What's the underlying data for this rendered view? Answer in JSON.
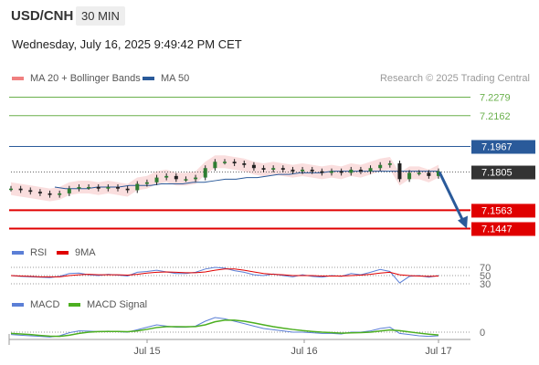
{
  "header": {
    "symbol": "USD/CNH",
    "timeframe": "30 MIN",
    "datetime": "Wednesday, July 16, 2025 9:49:42 PM CET"
  },
  "legend_main": [
    {
      "label": "MA 20 + Bollinger Bands",
      "color": "#f08080"
    },
    {
      "label": "MA 50",
      "color": "#2a5a9a"
    }
  ],
  "credit": "Research © 2025 Trading Central",
  "legend_rsi": [
    {
      "label": "RSI",
      "color": "#5b7fd6"
    },
    {
      "label": "9MA",
      "color": "#e00000"
    }
  ],
  "legend_macd": [
    {
      "label": "MACD",
      "color": "#5b7fd6"
    },
    {
      "label": "MACD Signal",
      "color": "#4caf20"
    }
  ],
  "colors": {
    "resistance": "#6ab04c",
    "pivot": "#2a5a9a",
    "support": "#e00000",
    "current": "#333333",
    "arrow": "#2a5a9a",
    "candle": "#222222",
    "band_fill": "#f8d0d0"
  },
  "chart_data": {
    "type": "candlestick",
    "x_ticks": [
      "Jul 15",
      "Jul 16",
      "Jul 17"
    ],
    "y_unit": "CNH",
    "levels": [
      {
        "value": 7.2279,
        "label": "7.2279",
        "kind": "resistance"
      },
      {
        "value": 7.2162,
        "label": "7.2162",
        "kind": "resistance"
      },
      {
        "value": 7.1967,
        "label": "7.1967",
        "kind": "pivot"
      },
      {
        "value": 7.1805,
        "label": "7.1805",
        "kind": "current"
      },
      {
        "value": 7.1563,
        "label": "7.1563",
        "kind": "support"
      },
      {
        "value": 7.1447,
        "label": "7.1447",
        "kind": "support"
      }
    ],
    "price_series": [
      7.17,
      7.169,
      7.168,
      7.167,
      7.166,
      7.167,
      7.17,
      7.171,
      7.171,
      7.17,
      7.171,
      7.17,
      7.169,
      7.173,
      7.174,
      7.177,
      7.178,
      7.176,
      7.176,
      7.177,
      7.183,
      7.187,
      7.187,
      7.186,
      7.185,
      7.183,
      7.182,
      7.183,
      7.182,
      7.181,
      7.182,
      7.181,
      7.18,
      7.181,
      7.18,
      7.182,
      7.181,
      7.183,
      7.185,
      7.186,
      7.176,
      7.18,
      7.18,
      7.178,
      7.181
    ],
    "ma50_series": [
      7.171,
      7.17,
      7.17,
      7.17,
      7.171,
      7.171,
      7.171,
      7.172,
      7.172,
      7.172,
      7.173,
      7.173,
      7.173,
      7.174,
      7.174,
      7.175,
      7.176,
      7.176,
      7.177,
      7.177,
      7.178,
      7.179,
      7.179,
      7.18,
      7.18,
      7.18,
      7.181,
      7.181,
      7.181,
      7.181,
      7.181,
      7.181,
      7.181,
      7.181,
      7.181,
      7.181,
      7.181
    ],
    "forecast": {
      "from": 7.1805,
      "to": 7.1447
    },
    "rsi": {
      "ticks": [
        70,
        50,
        30
      ],
      "series": [
        50,
        48,
        47,
        46,
        45,
        48,
        55,
        56,
        52,
        50,
        53,
        51,
        49,
        58,
        60,
        63,
        59,
        55,
        55,
        58,
        66,
        70,
        68,
        62,
        58,
        52,
        50,
        54,
        50,
        47,
        52,
        48,
        46,
        50,
        48,
        55,
        52,
        58,
        65,
        60,
        32,
        48,
        50,
        46,
        50
      ],
      "ma_series": [
        50,
        49,
        48,
        47,
        47,
        47,
        50,
        52,
        53,
        52,
        52,
        52,
        51,
        53,
        56,
        58,
        59,
        58,
        57,
        57,
        59,
        63,
        66,
        66,
        63,
        59,
        55,
        53,
        52,
        50,
        50,
        50,
        49,
        49,
        49,
        50,
        51,
        53,
        56,
        58,
        52,
        50,
        49,
        48,
        49
      ]
    },
    "macd": {
      "ticks": [
        0
      ],
      "macd_series": [
        -0.002,
        -0.0025,
        -0.003,
        -0.0035,
        -0.004,
        -0.003,
        -0.0005,
        0.001,
        0.0008,
        0.0005,
        0.0008,
        0.0004,
        0,
        0.002,
        0.004,
        0.006,
        0.005,
        0.004,
        0.004,
        0.005,
        0.009,
        0.012,
        0.011,
        0.009,
        0.007,
        0.005,
        0.003,
        0.002,
        0.001,
        0,
        0,
        -0.0005,
        -0.001,
        -0.001,
        -0.0015,
        0,
        0,
        0.001,
        0.003,
        0.004,
        -0.001,
        -0.002,
        -0.003,
        -0.0035,
        -0.003
      ],
      "signal_series": [
        -0.001,
        -0.0015,
        -0.002,
        -0.0027,
        -0.0033,
        -0.0035,
        -0.0025,
        -0.001,
        0,
        0.0005,
        0.0006,
        0.0006,
        0.0004,
        0.001,
        0.0023,
        0.0038,
        0.0045,
        0.0045,
        0.0044,
        0.0046,
        0.006,
        0.0085,
        0.0098,
        0.0098,
        0.009,
        0.0076,
        0.006,
        0.0045,
        0.0033,
        0.0022,
        0.0013,
        0.0006,
        0,
        -0.0004,
        -0.0008,
        -0.0006,
        -0.0004,
        0,
        0.0009,
        0.0018,
        0.0012,
        0.0002,
        -0.0008,
        -0.0017,
        -0.0023
      ]
    }
  }
}
